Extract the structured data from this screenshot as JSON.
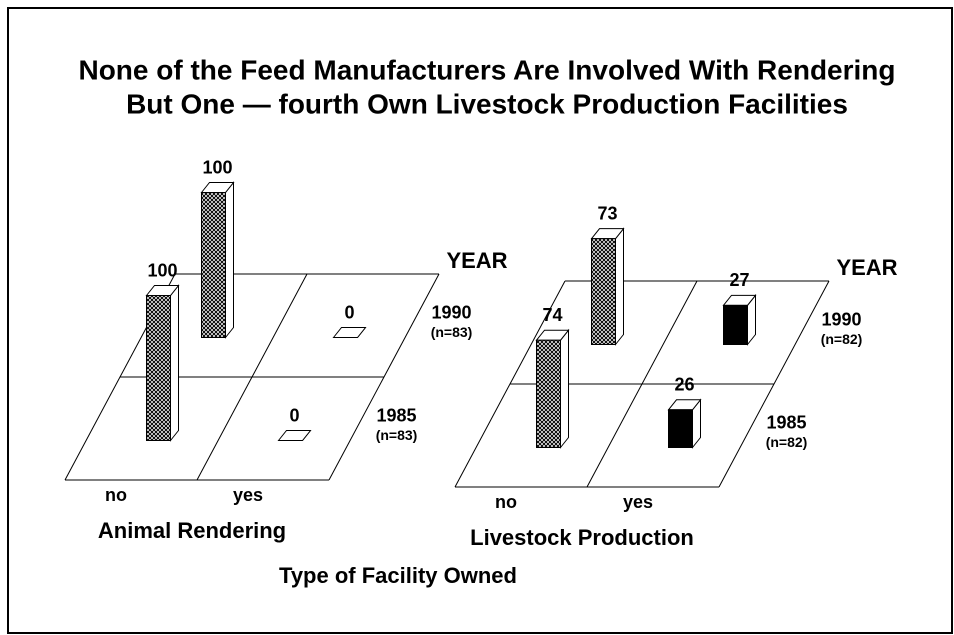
{
  "title": [
    "None of the Feed Manufacturers Are Involved With Rendering",
    "But One — fourth Own Livestock Production Facilities"
  ],
  "xlabel": "Type of Facility Owned",
  "chart_data": [
    {
      "type": "bar",
      "subtitle": "Animal Rendering",
      "categories": [
        "no",
        "yes"
      ],
      "legend_title": "YEAR",
      "bar_fills": [
        "crosshatch",
        "#000000"
      ],
      "series": [
        {
          "name": "1985",
          "sample": "(n=83)",
          "values": [
            100,
            0
          ]
        },
        {
          "name": "1990",
          "sample": "(n=83)",
          "values": [
            100,
            0
          ]
        }
      ]
    },
    {
      "type": "bar",
      "subtitle": "Livestock Production",
      "categories": [
        "no",
        "yes"
      ],
      "legend_title": "YEAR",
      "bar_fills": [
        "crosshatch",
        "#000000"
      ],
      "series": [
        {
          "name": "1985",
          "sample": "(n=82)",
          "values": [
            74,
            26
          ]
        },
        {
          "name": "1990",
          "sample": "(n=82)",
          "values": [
            73,
            27
          ]
        }
      ]
    }
  ]
}
